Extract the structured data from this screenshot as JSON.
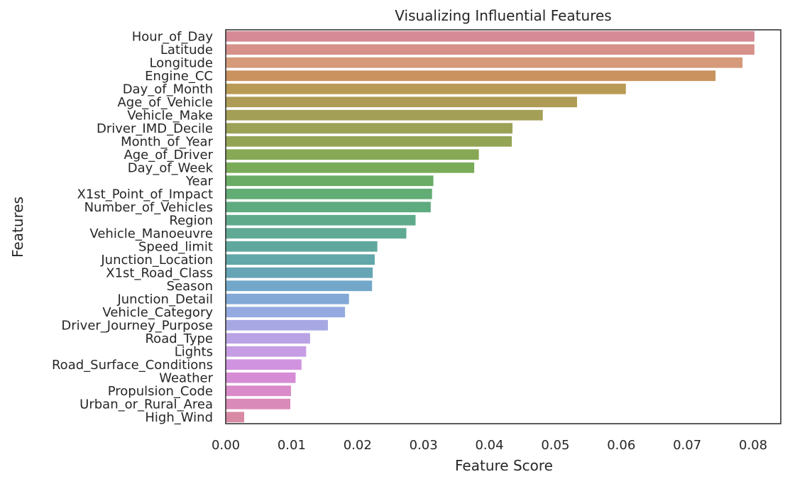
{
  "chart_data": {
    "type": "bar",
    "orientation": "horizontal",
    "title": "Visualizing Influential Features",
    "xlabel": "Feature Score",
    "ylabel": "Features",
    "xlim": [
      0.0,
      0.0842
    ],
    "xticks": [
      0.0,
      0.01,
      0.02,
      0.03,
      0.04,
      0.05,
      0.06,
      0.07,
      0.08
    ],
    "xtick_labels": [
      "0.00",
      "0.01",
      "0.02",
      "0.03",
      "0.04",
      "0.05",
      "0.06",
      "0.07",
      "0.08"
    ],
    "grid": false,
    "categories": [
      "Hour_of_Day",
      "Latitude",
      "Longitude",
      "Engine_CC",
      "Day_of_Month",
      "Age_of_Vehicle",
      "Vehicle_Make",
      "Driver_IMD_Decile",
      "Month_of_Year",
      "Age_of_Driver",
      "Day_of_Week",
      "Year",
      "X1st_Point_of_Impact",
      "Number_of_Vehicles",
      "Region",
      "Vehicle_Manoeuvre",
      "Speed_limit",
      "Junction_Location",
      "X1st_Road_Class",
      "Season",
      "Junction_Detail",
      "Vehicle_Category",
      "Driver_Journey_Purpose",
      "Road_Type",
      "Lights",
      "Road_Surface_Conditions",
      "Weather",
      "Propulsion_Code",
      "Urban_or_Rural_Area",
      "High_Wind"
    ],
    "values": [
      0.0802,
      0.0802,
      0.0784,
      0.0743,
      0.0607,
      0.0533,
      0.0481,
      0.0435,
      0.0434,
      0.0384,
      0.0377,
      0.0315,
      0.0313,
      0.0311,
      0.0288,
      0.0274,
      0.023,
      0.0226,
      0.0223,
      0.0222,
      0.0187,
      0.0181,
      0.0155,
      0.0128,
      0.0122,
      0.0115,
      0.0106,
      0.0099,
      0.0098,
      0.0028
    ],
    "colors": [
      "#d68a95",
      "#d6918a",
      "#d59a7a",
      "#c9925e",
      "#b99a54",
      "#ae9c56",
      "#a49f56",
      "#9ba257",
      "#94a455",
      "#87a855",
      "#7aab58",
      "#6aac65",
      "#62ac75",
      "#5fab80",
      "#5faa8b",
      "#5fa995",
      "#60a89e",
      "#61a6a8",
      "#66a5b5",
      "#72a7c9",
      "#82a9d6",
      "#94aae0",
      "#a7a8e3",
      "#b9a3e4",
      "#c69de4",
      "#d093df",
      "#d68cd5",
      "#d98ac8",
      "#d98ab9",
      "#d88aa4"
    ]
  }
}
